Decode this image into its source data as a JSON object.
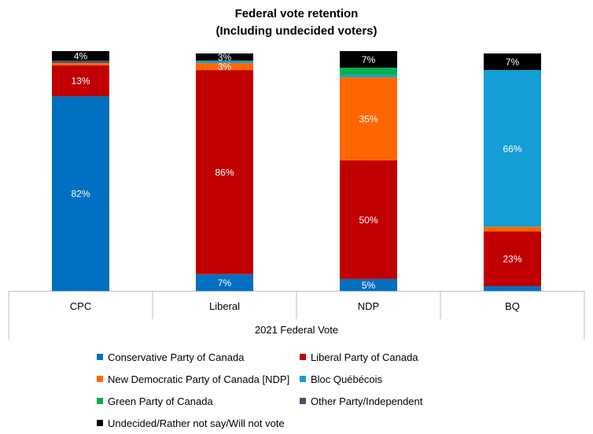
{
  "chart_data": {
    "type": "bar",
    "stacked": true,
    "title_line1": "Federal vote retention",
    "title_line2": "(Including undecided voters)",
    "xlabel": "2021 Federal Vote",
    "ylabel": "",
    "ylim": [
      0,
      100
    ],
    "categories": [
      "CPC",
      "Liberal",
      "NDP",
      "BQ"
    ],
    "series": [
      {
        "name": "Conservative Party of Canada",
        "color": "#0070C0",
        "values": [
          82,
          7,
          5,
          2
        ],
        "labels": [
          "82%",
          "7%",
          "5%",
          ""
        ]
      },
      {
        "name": "Liberal Party of Canada",
        "color": "#C00000",
        "values": [
          13,
          86,
          50,
          23
        ],
        "labels": [
          "13%",
          "86%",
          "50%",
          "23%"
        ]
      },
      {
        "name": "New Democratic Party of Canada [NDP]",
        "color": "#FF6600",
        "values": [
          1,
          3,
          35,
          2
        ],
        "labels": [
          "",
          "3%",
          "35%",
          ""
        ]
      },
      {
        "name": "Bloc Québécois",
        "color": "#139ED6",
        "values": [
          0,
          1,
          1,
          66
        ],
        "labels": [
          "",
          "",
          "",
          "66%"
        ]
      },
      {
        "name": "Green Party of Canada",
        "color": "#00B050",
        "values": [
          0,
          0,
          3,
          0
        ],
        "labels": [
          "",
          "",
          "",
          ""
        ]
      },
      {
        "name": "Other Party/Independent",
        "color": "#44546A",
        "values": [
          1,
          0,
          0,
          0
        ],
        "labels": [
          "",
          "",
          "",
          ""
        ]
      },
      {
        "name": "Undecided/Rather not say/Will not vote",
        "color": "#000000",
        "values": [
          4,
          3,
          7,
          7
        ],
        "labels": [
          "4%",
          "3%",
          "7%",
          "7%"
        ]
      }
    ]
  }
}
